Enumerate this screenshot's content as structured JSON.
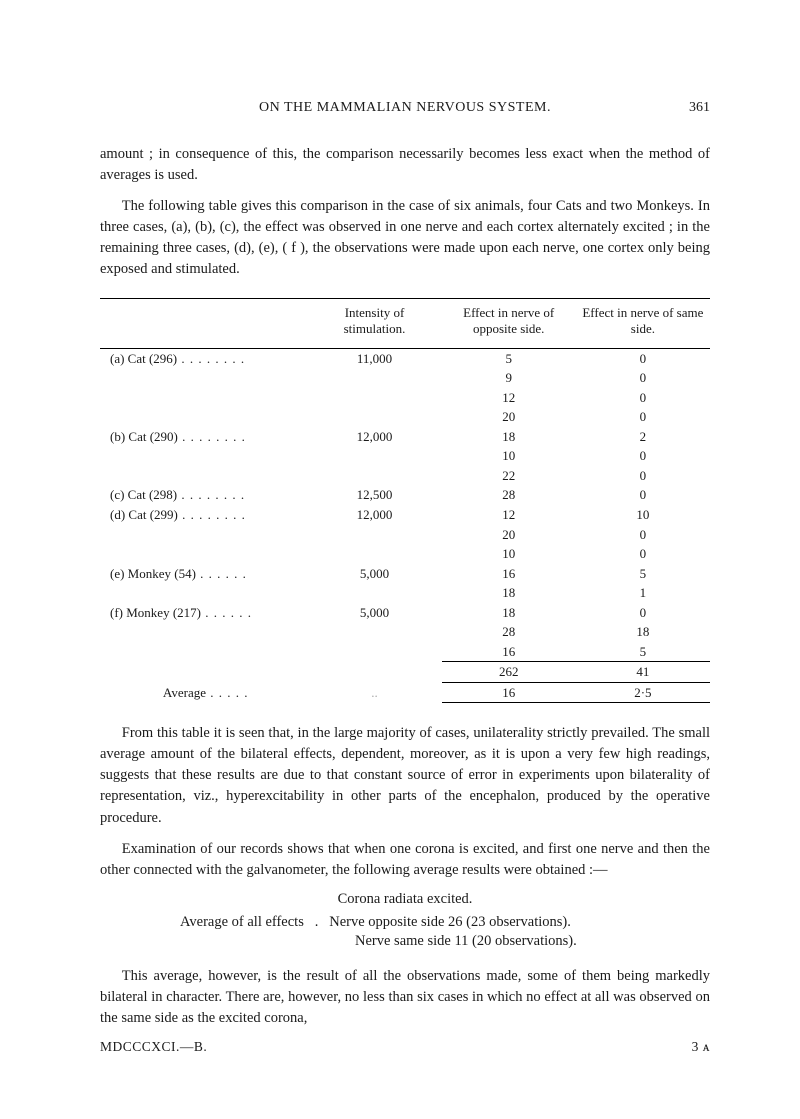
{
  "header": {
    "title": "ON THE MAMMALIAN NERVOUS SYSTEM.",
    "page_number": "361"
  },
  "para1": "amount ; in consequence of this, the comparison necessarily becomes less exact when the method of averages is used.",
  "para2": "The following table gives this comparison in the case of six animals, four Cats and two Monkeys. In three cases, (a), (b), (c), the effect was observed in one nerve and each cortex alternately excited ; in the remaining three cases, (d), (e), ( f ), the observations were made upon each nerve, one cortex only being exposed and stimulated.",
  "table": {
    "columns": [
      "",
      "Intensity of stimulation.",
      "Effect in nerve of opposite side.",
      "Effect in nerve of same side."
    ],
    "groups": [
      {
        "label": "(a) Cat (296)",
        "intensity": "11,000",
        "rows": [
          [
            "5",
            "0"
          ],
          [
            "9",
            "0"
          ],
          [
            "12",
            "0"
          ],
          [
            "20",
            "0"
          ]
        ]
      },
      {
        "label": "(b) Cat (290)",
        "intensity": "12,000",
        "rows": [
          [
            "18",
            "2"
          ],
          [
            "10",
            "0"
          ],
          [
            "22",
            "0"
          ]
        ]
      },
      {
        "label": "(c) Cat (298)",
        "intensity": "12,500",
        "rows": [
          [
            "28",
            "0"
          ]
        ]
      },
      {
        "label": "(d) Cat (299)",
        "intensity": "12,000",
        "rows": [
          [
            "12",
            "10"
          ],
          [
            "20",
            "0"
          ],
          [
            "10",
            "0"
          ]
        ]
      },
      {
        "label": "(e) Monkey (54)",
        "intensity": "5,000",
        "rows": [
          [
            "16",
            "5"
          ],
          [
            "18",
            "1"
          ]
        ]
      },
      {
        "label": "(f) Monkey (217)",
        "intensity": "5,000",
        "rows": [
          [
            "18",
            "0"
          ],
          [
            "28",
            "18"
          ],
          [
            "16",
            "5"
          ]
        ]
      }
    ],
    "sum": [
      "262",
      "41"
    ],
    "average_label": "Average",
    "average": [
      "16",
      "2·5"
    ]
  },
  "para3": "From this table it is seen that, in the large majority of cases, unilaterality strictly prevailed. The small average amount of the bilateral effects, dependent, moreover, as it is upon a very few high readings, suggests that these results are due to that constant source of error in experiments upon bilaterality of representation, viz., hyperexcitability in other parts of the encephalon, produced by the operative procedure.",
  "para4": "Examination of our records shows that when one corona is excited, and first one nerve and then the other connected with the galvanometer, the following average results were obtained :—",
  "corona_heading": "Corona radiata excited.",
  "avg_all_label": "Average of all effects",
  "avg_line1": "Nerve opposite side 26 (23 observations).",
  "avg_line2": "Nerve same side 11 (20 observations).",
  "para5": "This average, however, is the result of all the observations made, some of them being markedly bilateral in character. There are, however, no less than six cases in which no effect at all was observed on the same side as the excited corona,",
  "footer": {
    "left": "MDCCCXCI.—B.",
    "right": "3 ᴀ"
  }
}
